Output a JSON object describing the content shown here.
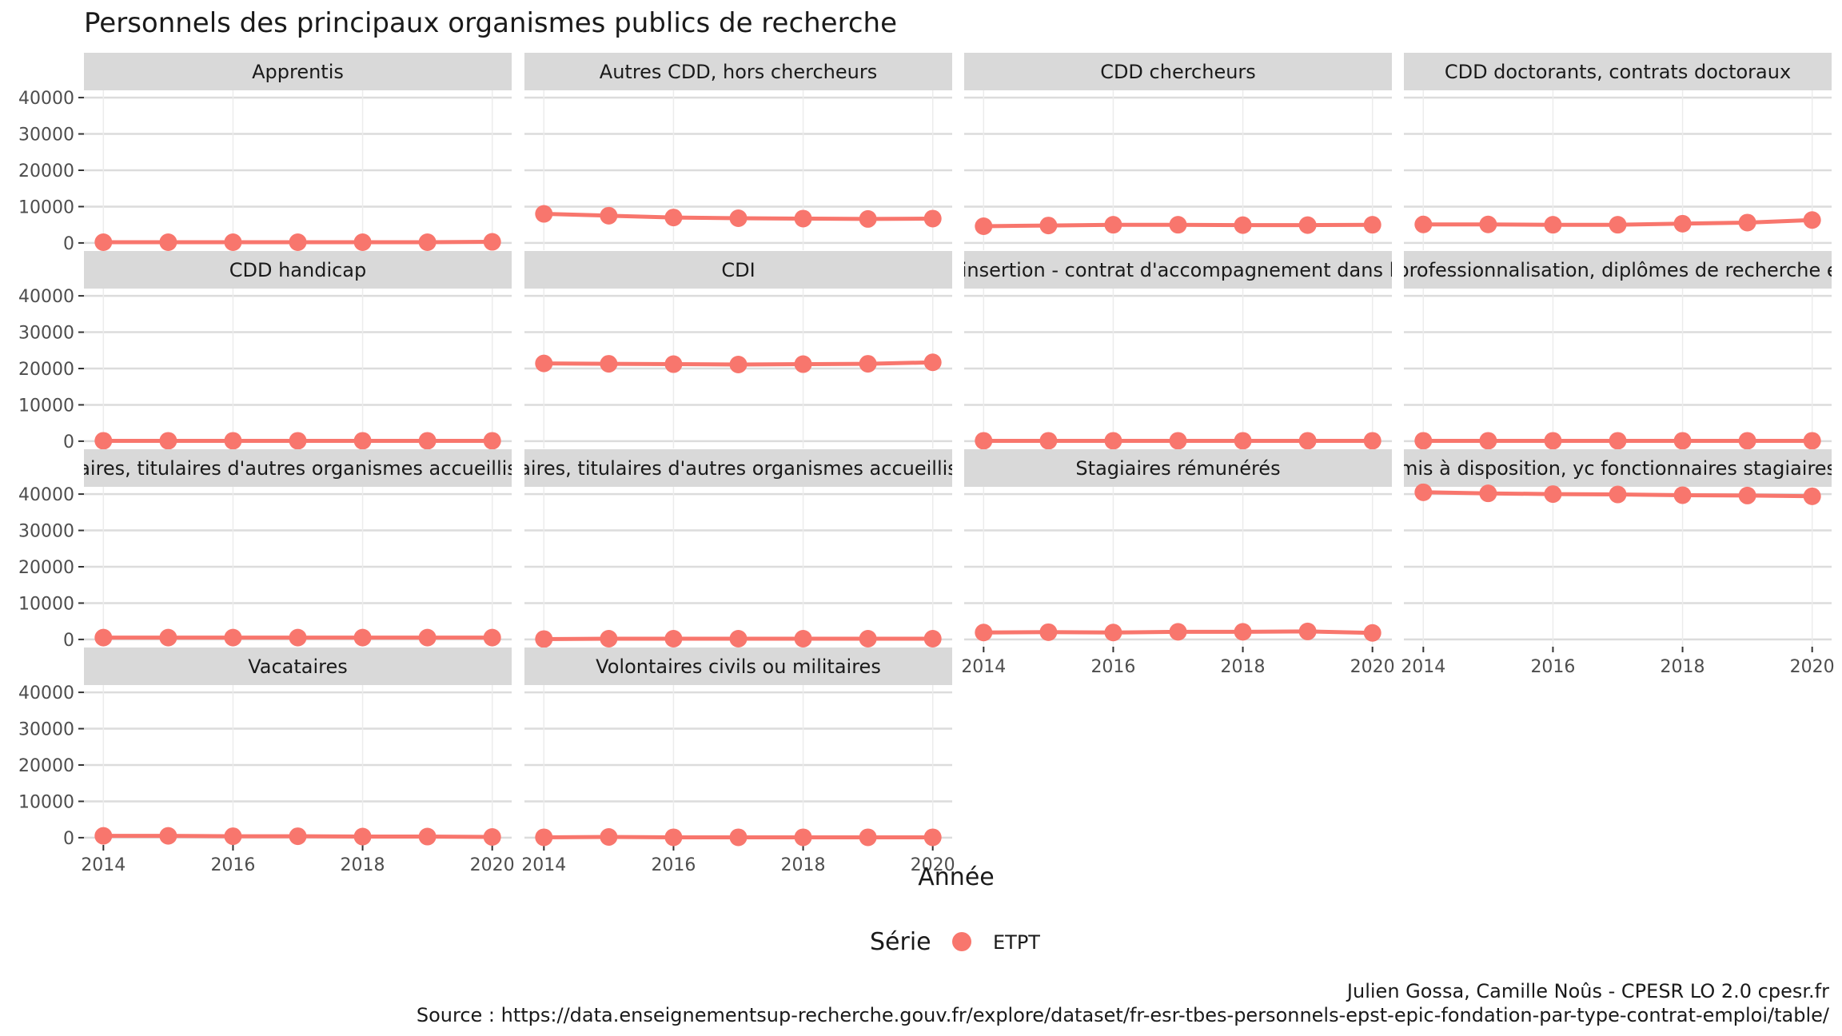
{
  "chart_data": {
    "type": "line",
    "title": "Personnels des principaux organismes publics de recherche",
    "xlabel": "Année",
    "ylabel": "",
    "x": [
      2014,
      2015,
      2016,
      2017,
      2018,
      2019,
      2020
    ],
    "x_ticks": [
      "2014",
      "2016",
      "2018",
      "2020"
    ],
    "x_tick_values": [
      2014,
      2016,
      2018,
      2020
    ],
    "y_ticks": [
      "0",
      "10000",
      "20000",
      "30000",
      "40000"
    ],
    "y_tick_values": [
      0,
      10000,
      20000,
      30000,
      40000
    ],
    "xlim": [
      2013.7,
      2020.3
    ],
    "ylim": [
      -2000,
      42000
    ],
    "grid": true,
    "legend": {
      "title": "Série",
      "position": "bottom",
      "entries": [
        "ETPT"
      ]
    },
    "series_color": "#F8766D",
    "facets": [
      {
        "label": "Apprentis",
        "values": [
          200,
          200,
          200,
          200,
          200,
          200,
          300
        ]
      },
      {
        "label": "Autres CDD, hors chercheurs",
        "values": [
          8000,
          7500,
          7000,
          6800,
          6700,
          6600,
          6700
        ]
      },
      {
        "label": "CDD chercheurs",
        "values": [
          4600,
          4800,
          5000,
          5000,
          4900,
          4900,
          5000
        ]
      },
      {
        "label": "CDD doctorants, contrats doctoraux",
        "values": [
          5100,
          5100,
          5000,
          5000,
          5300,
          5600,
          6300
        ]
      },
      {
        "label": "CDD handicap",
        "values": [
          100,
          100,
          100,
          100,
          100,
          100,
          100
        ]
      },
      {
        "label": "CDI",
        "values": [
          21400,
          21300,
          21200,
          21100,
          21200,
          21300,
          21700
        ]
      },
      {
        "label": "insertion - contrat d'accompagnement dans l",
        "values": [
          100,
          100,
          100,
          100,
          100,
          100,
          100
        ]
      },
      {
        "label": "professionnalisation, diplômes de recherche e",
        "values": [
          100,
          100,
          100,
          100,
          100,
          100,
          100
        ]
      },
      {
        "label": "aires, titulaires d'autres organismes accueillis",
        "values": [
          500,
          500,
          500,
          500,
          500,
          500,
          500
        ]
      },
      {
        "label": "aires, titulaires d'autres organismes accueillis",
        "values": [
          100,
          200,
          200,
          200,
          200,
          200,
          200
        ]
      },
      {
        "label": "Stagiaires rémunérés",
        "values": [
          1900,
          2000,
          1900,
          2100,
          2100,
          2200,
          1800
        ]
      },
      {
        "label": "mis à disposition, yc fonctionnaires stagiaires",
        "values": [
          40500,
          40200,
          40000,
          39900,
          39700,
          39600,
          39400
        ]
      },
      {
        "label": "Vacataires",
        "values": [
          500,
          500,
          400,
          400,
          300,
          300,
          200
        ]
      },
      {
        "label": "Volontaires civils ou militaires",
        "values": [
          100,
          200,
          100,
          100,
          100,
          100,
          100
        ]
      }
    ]
  },
  "caption": {
    "authors": "Julien Gossa, Camille Noûs - CPESR LO 2.0 cpesr.fr",
    "source": "Source : https://data.enseignementsup-recherche.gouv.fr/explore/dataset/fr-esr-tbes-personnels-epst-epic-fondation-par-type-contrat-emploi/table/"
  }
}
